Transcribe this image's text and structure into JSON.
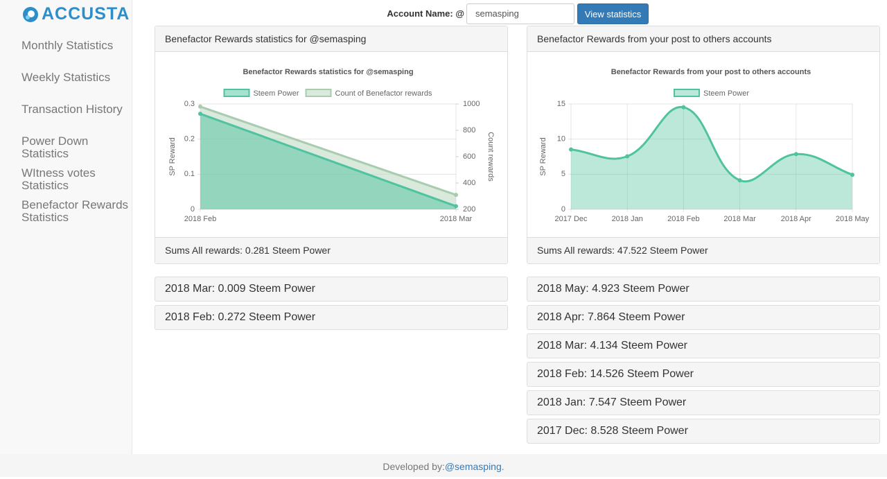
{
  "sidebar": {
    "logo": "ACCUSTA",
    "nav": [
      "Monthly Statistics",
      "Weekly Statistics",
      "Transaction History",
      "Power Down Statistics",
      "WItness votes Statistics",
      "Benefactor Rewards Statistics"
    ]
  },
  "form": {
    "label": "Account Name: @",
    "input": "semasping",
    "button": "View statistics"
  },
  "panels": [
    {
      "heading": "Benefactor Rewards statistics for @semasping",
      "footer": "Sums All rewards: 0.281 Steem Power",
      "items": [
        "2018 Mar: 0.009 Steem Power",
        "2018 Feb: 0.272 Steem Power"
      ]
    },
    {
      "heading": "Benefactor Rewards from your post to others accounts",
      "footer": "Sums All rewards: 47.522 Steem Power",
      "items": [
        "2018 May: 4.923 Steem Power",
        "2018 Apr: 7.864 Steem Power",
        "2018 Mar: 4.134 Steem Power",
        "2018 Feb: 14.526 Steem Power",
        "2018 Jan: 7.547 Steem Power",
        "2017 Dec: 8.528 Steem Power"
      ]
    }
  ],
  "footer": {
    "text": "Developed by:",
    "link": "@semasping",
    "end": "."
  },
  "chart_data": [
    {
      "type": "line",
      "title": "Benefactor Rewards statistics for @semasping",
      "categories": [
        "2018 Feb",
        "2018 Mar"
      ],
      "series": [
        {
          "name": "Steem Power",
          "color": "#4fc39f",
          "fill": "rgba(79,195,159,0.5)",
          "values": [
            0.272,
            0.009
          ]
        },
        {
          "name": "Count of Benefactor rewards",
          "color": "#a9ccb0",
          "fill": "rgba(185,215,190,0.55)",
          "values": [
            980,
            310
          ],
          "axis": "y2"
        }
      ],
      "ylabel": "SP Reward",
      "y2label": "Count rewards",
      "ylim": [
        0,
        0.3
      ],
      "yticks": [
        0,
        0.1,
        0.2,
        0.3
      ],
      "y2lim": [
        200,
        1000
      ],
      "y2ticks": [
        200,
        400,
        600,
        800,
        1000
      ],
      "grid": true,
      "legend": "top"
    },
    {
      "type": "line",
      "title": "Benefactor Rewards from your post to others accounts",
      "categories": [
        "2017 Dec",
        "2018 Jan",
        "2018 Feb",
        "2018 Mar",
        "2018 Apr",
        "2018 May"
      ],
      "series": [
        {
          "name": "Steem Power",
          "color": "#4fc39f",
          "fill": "rgba(79,195,159,0.38)",
          "values": [
            8.528,
            7.547,
            14.526,
            4.134,
            7.864,
            4.923
          ]
        }
      ],
      "ylabel": "SP Reward",
      "ylim": [
        0,
        15
      ],
      "yticks": [
        0,
        5,
        10,
        15
      ],
      "grid": true,
      "legend": "top"
    }
  ]
}
